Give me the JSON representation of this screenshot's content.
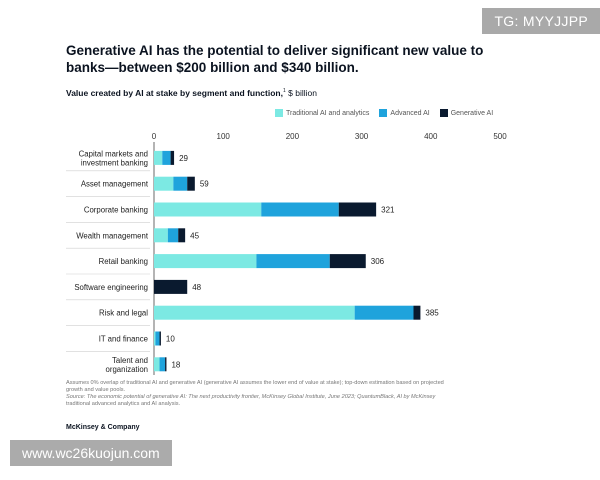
{
  "title": "Generative AI has the potential to deliver significant new value to banks—between $200 billion and $340 billion.",
  "subtitle": {
    "main": "Value created by AI at stake by segment and function,",
    "footnote_marker": "1",
    "unit": "$ billion"
  },
  "colors": {
    "traditional": "#7ce9e3",
    "advanced": "#1fa3dc",
    "generative": "#0a1a2f"
  },
  "chart_data": {
    "type": "bar",
    "orientation": "horizontal",
    "stacked": true,
    "xlim": [
      0,
      500
    ],
    "xticks": [
      0,
      100,
      200,
      300,
      400,
      500
    ],
    "categories": [
      "Capital markets and investment banking",
      "Asset management",
      "Corporate banking",
      "Wealth management",
      "Retail banking",
      "Software engineering",
      "Risk and legal",
      "IT and finance",
      "Talent and organization"
    ],
    "category_lines": [
      [
        "Capital markets and",
        "investment banking"
      ],
      [
        "Asset management"
      ],
      [
        "Corporate banking"
      ],
      [
        "Wealth management"
      ],
      [
        "Retail banking"
      ],
      [
        "Software engineering"
      ],
      [
        "Risk and legal"
      ],
      [
        "IT and finance"
      ],
      [
        "Talent and",
        "organization"
      ]
    ],
    "series": [
      {
        "name": "Traditional AI and analytics",
        "values": [
          12,
          28,
          155,
          20,
          148,
          0,
          290,
          2,
          8
        ]
      },
      {
        "name": "Advanced AI",
        "values": [
          12,
          20,
          112,
          15,
          106,
          0,
          85,
          6,
          8
        ]
      },
      {
        "name": "Generative AI",
        "values": [
          5,
          11,
          54,
          10,
          52,
          48,
          10,
          2,
          2
        ]
      }
    ],
    "totals": [
      29,
      59,
      321,
      45,
      306,
      48,
      385,
      10,
      18
    ],
    "grid": false,
    "legend_position": "top-right"
  },
  "footnote": {
    "line1": "Assumes 0% overlap of traditional AI and generative AI (generative AI assumes the lower end of value at stake); top-down estimation based on projected",
    "line2": "growth and value pools.",
    "line3": "Source: The economic potential of generative AI: The next productivity frontier, McKinsey Global Institute, June 2023; QuantumBlack, AI by McKinsey",
    "line4": "traditional advanced analytics and AI analysis."
  },
  "brand": "McKinsey & Company",
  "watermark_top": "TG: MYYJJPP",
  "watermark_bottom": "www.wc26kuojun.com"
}
